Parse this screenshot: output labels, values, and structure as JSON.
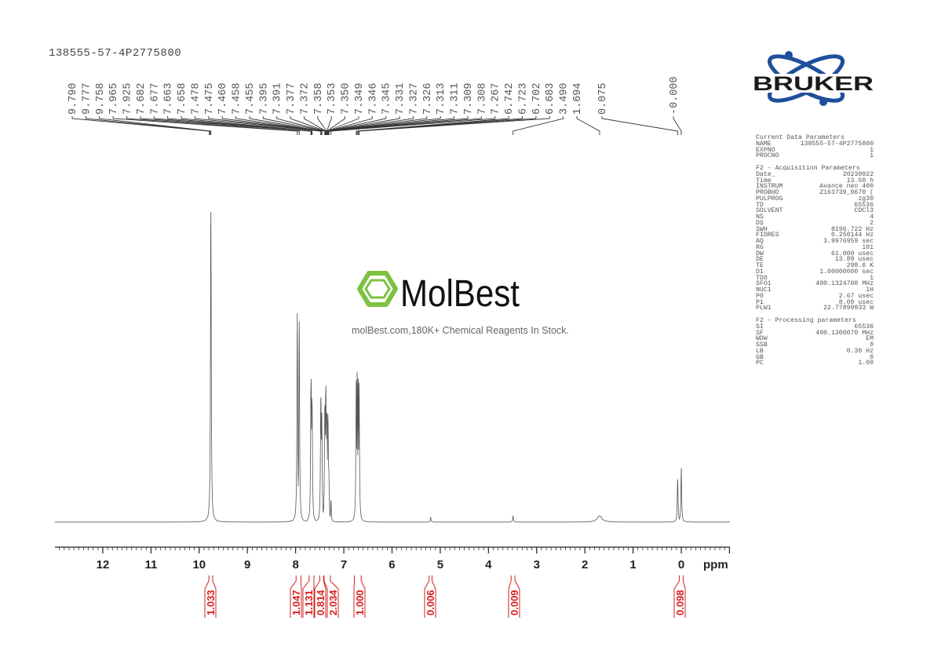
{
  "title": "138555-57-4P2775800",
  "watermark": {
    "brand": "MolBest",
    "tagline": "molBest.com,180K+ Chemical Reagents In Stock.",
    "color": "#7dc242"
  },
  "logo": {
    "text": "BRUKER",
    "color": "#1f4e9c"
  },
  "parameters": {
    "sections": [
      {
        "title": "Current Data Parameters",
        "rows": [
          [
            "NAME",
            "138555-57-4P2775800"
          ],
          [
            "EXPNO",
            "1"
          ],
          [
            "PROCNO",
            "1"
          ]
        ]
      },
      {
        "title": "F2 - Acquisition Parameters",
        "rows": [
          [
            "Date_",
            "20230922"
          ],
          [
            "Time",
            "13.50 h"
          ],
          [
            "INSTRUM",
            "Avance neo 400"
          ],
          [
            "PROBHD",
            "Z163739_0670 ("
          ],
          [
            "PULPROG",
            "zg30"
          ],
          [
            "TD",
            "65536"
          ],
          [
            "SOLVENT",
            "CDCl3"
          ],
          [
            "NS",
            "4"
          ],
          [
            "DS",
            "2"
          ],
          [
            "SWH",
            "8196.722 Hz"
          ],
          [
            "FIDRES",
            "0.250144 Hz"
          ],
          [
            "AQ",
            "3.9976959 sec"
          ],
          [
            "RG",
            "101"
          ],
          [
            "DW",
            "61.000 usec"
          ],
          [
            "DE",
            "13.89 usec"
          ],
          [
            "TE",
            "298.6 K"
          ],
          [
            "D1",
            "1.00000000 sec"
          ],
          [
            "TD0",
            "1"
          ],
          [
            "SFO1",
            "400.1324708 MHz"
          ],
          [
            "NUC1",
            "1H"
          ],
          [
            "P0",
            "2.67 usec"
          ],
          [
            "P1",
            "8.00 usec"
          ],
          [
            "PLW1",
            "22.77899933 W"
          ]
        ]
      },
      {
        "title": "F2 - Processing parameters",
        "rows": [
          [
            "SI",
            "65536"
          ],
          [
            "SF",
            "400.1300070 MHz"
          ],
          [
            "WDW",
            "EM"
          ],
          [
            "SSB",
            "0"
          ],
          [
            "LB",
            "0.30 Hz"
          ],
          [
            "GB",
            "0"
          ],
          [
            "PC",
            "1.00"
          ]
        ]
      }
    ]
  },
  "chart_data": {
    "type": "line",
    "xlabel": "ppm",
    "xlim": [
      13,
      -1
    ],
    "x_reversed": true,
    "x_ticks": [
      "12",
      "11",
      "10",
      "9",
      "8",
      "7",
      "6",
      "5",
      "4",
      "3",
      "2",
      "1",
      "0"
    ],
    "grid": false,
    "line_color": "#555555",
    "integral_color": "#d42020",
    "peak_labels": [
      "9.790",
      "9.777",
      "9.758",
      "7.965",
      "7.925",
      "7.682",
      "7.677",
      "7.663",
      "7.658",
      "7.478",
      "7.475",
      "7.460",
      "7.458",
      "7.455",
      "7.395",
      "7.391",
      "7.377",
      "7.372",
      "7.358",
      "7.353",
      "7.350",
      "7.349",
      "7.346",
      "7.345",
      "7.331",
      "7.327",
      "7.326",
      "7.313",
      "7.311",
      "7.309",
      "7.308",
      "7.267",
      "6.742",
      "6.723",
      "6.702",
      "6.683",
      "3.490",
      "1.694",
      "0.075",
      "-0.000"
    ],
    "peaks": [
      {
        "ppm": 9.79,
        "intensity": 1
      },
      {
        "ppm": 9.777,
        "intensity": 1
      },
      {
        "ppm": 9.758,
        "intensity": 100
      },
      {
        "ppm": 7.965,
        "intensity": 66
      },
      {
        "ppm": 7.925,
        "intensity": 63
      },
      {
        "ppm": 7.682,
        "intensity": 44
      },
      {
        "ppm": 7.677,
        "intensity": 45
      },
      {
        "ppm": 7.663,
        "intensity": 40
      },
      {
        "ppm": 7.658,
        "intensity": 38
      },
      {
        "ppm": 7.478,
        "intensity": 38
      },
      {
        "ppm": 7.475,
        "intensity": 41
      },
      {
        "ppm": 7.46,
        "intensity": 34
      },
      {
        "ppm": 7.458,
        "intensity": 35
      },
      {
        "ppm": 7.455,
        "intensity": 30
      },
      {
        "ppm": 7.395,
        "intensity": 36
      },
      {
        "ppm": 7.391,
        "intensity": 37
      },
      {
        "ppm": 7.377,
        "intensity": 42
      },
      {
        "ppm": 7.372,
        "intensity": 43
      },
      {
        "ppm": 7.358,
        "intensity": 35
      },
      {
        "ppm": 7.353,
        "intensity": 36
      },
      {
        "ppm": 7.35,
        "intensity": 34
      },
      {
        "ppm": 7.349,
        "intensity": 33
      },
      {
        "ppm": 7.346,
        "intensity": 30
      },
      {
        "ppm": 7.345,
        "intensity": 29
      },
      {
        "ppm": 7.331,
        "intensity": 34
      },
      {
        "ppm": 7.327,
        "intensity": 32
      },
      {
        "ppm": 7.326,
        "intensity": 30
      },
      {
        "ppm": 7.313,
        "intensity": 18
      },
      {
        "ppm": 7.311,
        "intensity": 16
      },
      {
        "ppm": 7.309,
        "intensity": 14
      },
      {
        "ppm": 7.308,
        "intensity": 13
      },
      {
        "ppm": 7.267,
        "intensity": 7
      },
      {
        "ppm": 6.742,
        "intensity": 46
      },
      {
        "ppm": 6.723,
        "intensity": 48
      },
      {
        "ppm": 6.702,
        "intensity": 47
      },
      {
        "ppm": 6.683,
        "intensity": 44
      },
      {
        "ppm": 5.2,
        "intensity": 1.5
      },
      {
        "ppm": 3.49,
        "intensity": 2
      },
      {
        "ppm": 1.694,
        "intensity": 2,
        "broad": true
      },
      {
        "ppm": 0.075,
        "intensity": 14
      },
      {
        "ppm": 0.0,
        "intensity": 17
      }
    ],
    "integrals": [
      {
        "value": "1.033",
        "from": 9.8,
        "to": 9.72
      },
      {
        "value": "1.047",
        "from": 7.99,
        "to": 7.89
      },
      {
        "value": "1.131",
        "from": 7.72,
        "to": 7.62
      },
      {
        "value": "0.814",
        "from": 7.5,
        "to": 7.42
      },
      {
        "value": "2.034",
        "from": 7.41,
        "to": 7.28
      },
      {
        "value": "1.000",
        "from": 6.78,
        "to": 6.64
      },
      {
        "value": "0.006",
        "from": 5.23,
        "to": 5.17
      },
      {
        "value": "0.009",
        "from": 3.53,
        "to": 3.45
      },
      {
        "value": "0.098",
        "from": 0.04,
        "to": -0.04
      }
    ]
  }
}
